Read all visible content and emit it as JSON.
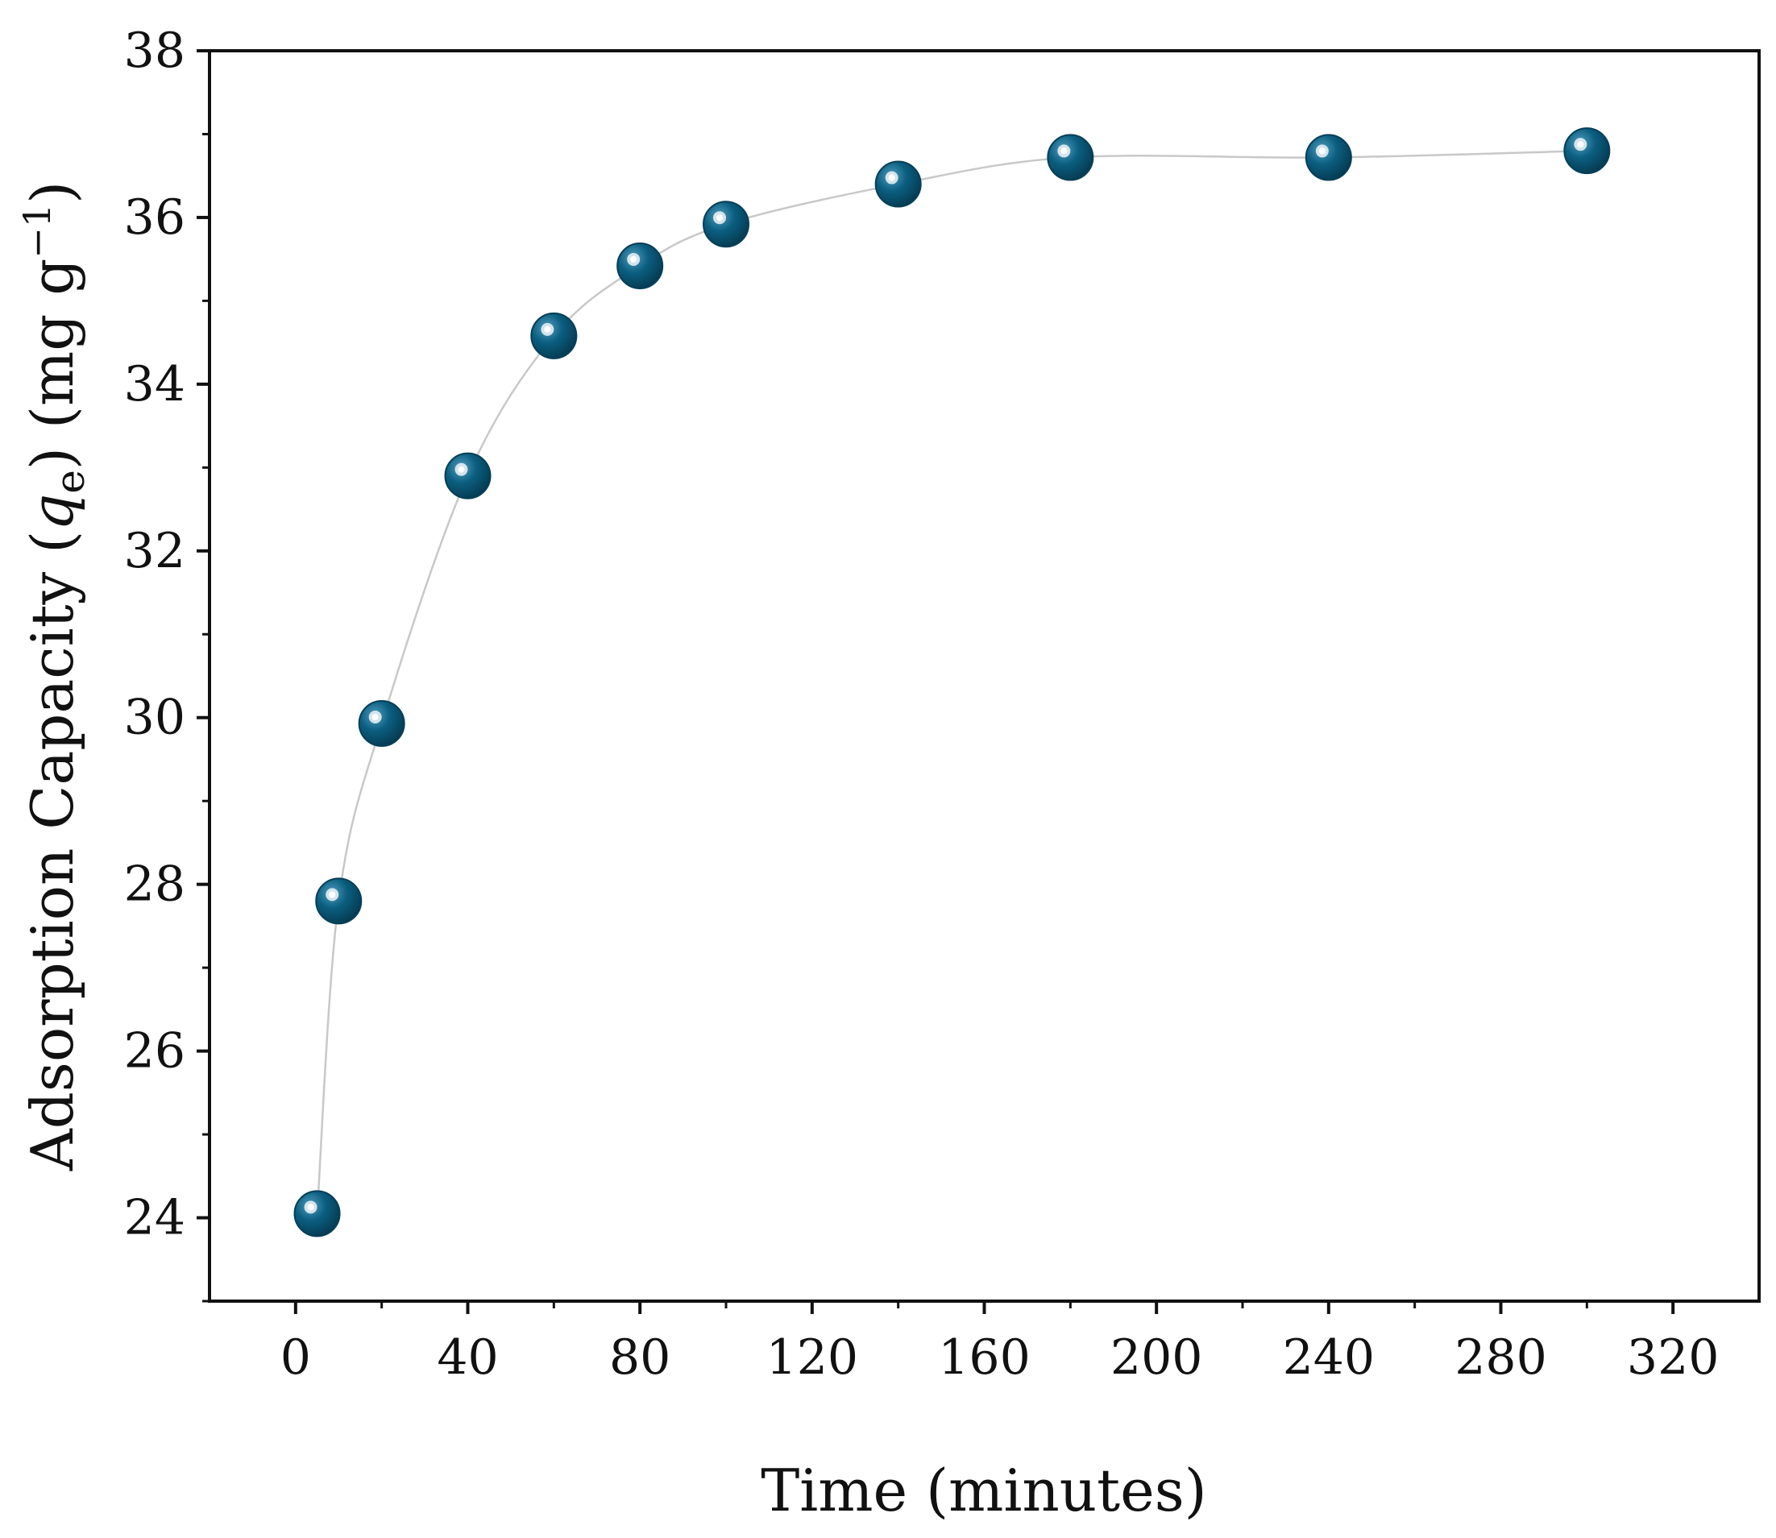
{
  "chart_data": {
    "type": "scatter",
    "title": "",
    "xlabel": "Time (minutes)",
    "ylabel": {
      "prefix": "Adsorption Capacity (",
      "symbol": "q",
      "subscript": "e",
      "suffix": ") (mg g",
      "superscript": "−1",
      "close": ")"
    },
    "xlim": [
      -20,
      340
    ],
    "ylim": [
      23,
      38
    ],
    "xticks": [
      0,
      40,
      80,
      120,
      160,
      200,
      240,
      280,
      320
    ],
    "yticks": [
      24,
      26,
      28,
      30,
      32,
      34,
      36,
      38
    ],
    "grid": false,
    "legend": "none",
    "series": [
      {
        "x": [
          5,
          10,
          20,
          40,
          60,
          80,
          100,
          140,
          180,
          240,
          300
        ],
        "y": [
          24.05,
          27.8,
          29.93,
          32.9,
          34.58,
          35.42,
          35.92,
          36.4,
          36.72,
          36.72,
          36.8
        ],
        "marker_color": "#0b5e80",
        "fit_line_color": "#c8c8c8"
      }
    ]
  }
}
